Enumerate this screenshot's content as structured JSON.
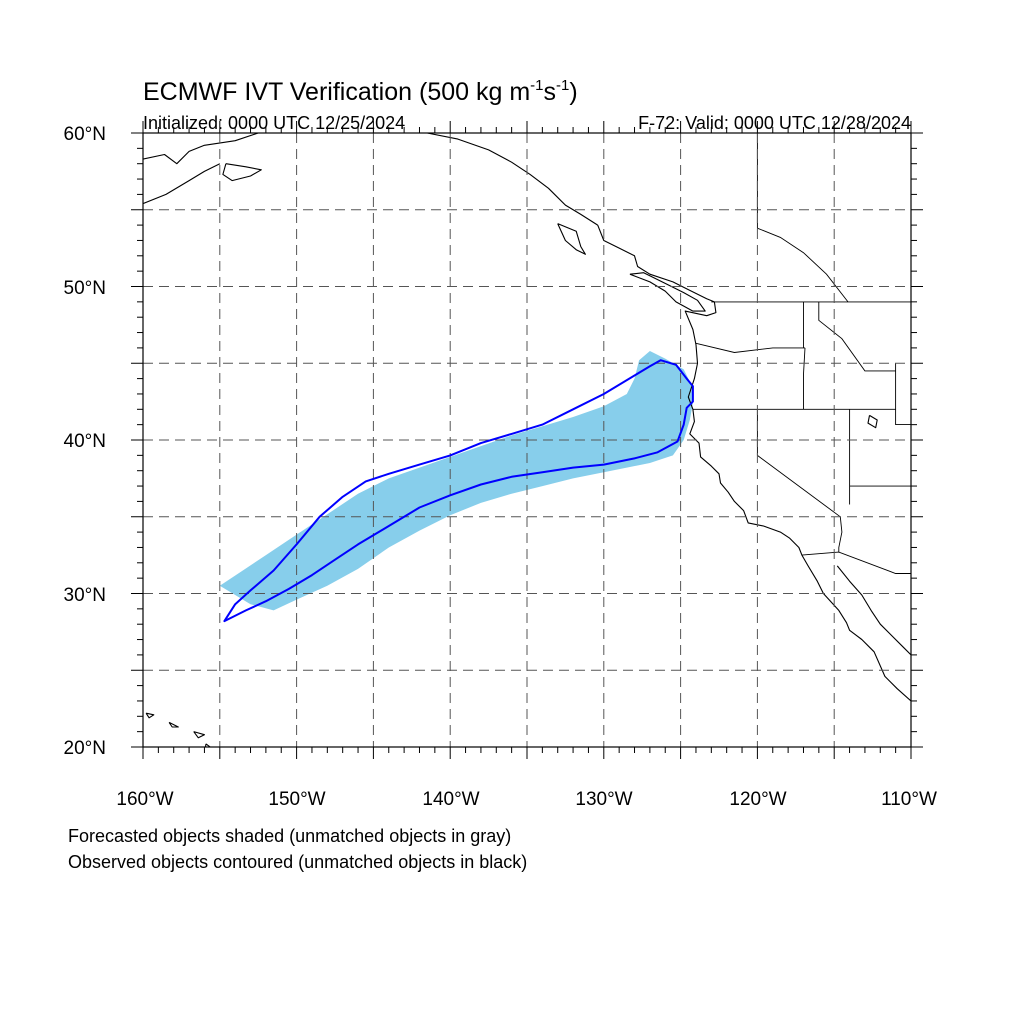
{
  "title": {
    "main": "ECMWF IVT Verification (500 kg m",
    "sup1": "-1",
    "mid": "s",
    "sup2": "-1",
    "end": ")"
  },
  "subtitle_left": "Initialized: 0000 UTC 12/25/2024",
  "subtitle_right": "F-72: Valid: 0000 UTC 12/28/2024",
  "lon_labels": [
    "160°W",
    "150°W",
    "140°W",
    "130°W",
    "120°W",
    "110°W"
  ],
  "lat_labels": [
    "60°N",
    "50°N",
    "40°N",
    "30°N",
    "20°N"
  ],
  "captions": [
    "Forecasted objects shaded (unmatched objects in gray)",
    "Observed objects contoured (unmatched objects in black)"
  ],
  "map_extent": {
    "lon": [
      -160,
      -110
    ],
    "lat": [
      20,
      60
    ]
  },
  "grid": {
    "lon_step": 5,
    "lat_step": 5,
    "style": "dashed"
  },
  "colors": {
    "forecast_fill": "#87ceeb",
    "observed_contour": "#0000ff",
    "coastline": "#000000",
    "grid": "#555555"
  },
  "forecast_object": {
    "label": "forecast IVT object (matched)",
    "polygon": [
      [
        -155.0,
        30.5
      ],
      [
        -153.5,
        31.5
      ],
      [
        -152.0,
        32.5
      ],
      [
        -150.5,
        33.5
      ],
      [
        -149.0,
        34.5
      ],
      [
        -147.5,
        35.5
      ],
      [
        -146.0,
        36.5
      ],
      [
        -144.0,
        37.5
      ],
      [
        -142.0,
        38.2
      ],
      [
        -140.0,
        38.9
      ],
      [
        -138.0,
        39.6
      ],
      [
        -136.0,
        40.3
      ],
      [
        -134.0,
        40.9
      ],
      [
        -132.0,
        41.5
      ],
      [
        -130.0,
        42.2
      ],
      [
        -128.5,
        43.0
      ],
      [
        -128.0,
        44.0
      ],
      [
        -127.7,
        45.2
      ],
      [
        -127.0,
        45.8
      ],
      [
        -126.0,
        45.3
      ],
      [
        -124.8,
        44.6
      ],
      [
        -124.3,
        43.6
      ],
      [
        -124.2,
        42.4
      ],
      [
        -124.4,
        41.3
      ],
      [
        -124.8,
        40.0
      ],
      [
        -125.5,
        39.0
      ],
      [
        -127.0,
        38.5
      ],
      [
        -128.5,
        38.2
      ],
      [
        -130.0,
        37.9
      ],
      [
        -132.0,
        37.5
      ],
      [
        -134.0,
        37.0
      ],
      [
        -136.0,
        36.5
      ],
      [
        -138.0,
        35.9
      ],
      [
        -140.0,
        35.1
      ],
      [
        -142.0,
        34.1
      ],
      [
        -144.0,
        33.0
      ],
      [
        -146.0,
        31.6
      ],
      [
        -148.0,
        30.5
      ],
      [
        -150.0,
        29.6
      ],
      [
        -151.5,
        28.9
      ],
      [
        -153.0,
        29.3
      ],
      [
        -154.0,
        29.9
      ]
    ]
  },
  "observed_object": {
    "label": "observed IVT object (matched)",
    "polygon": [
      [
        -154.7,
        28.2
      ],
      [
        -153.3,
        28.9
      ],
      [
        -152.0,
        29.5
      ],
      [
        -150.5,
        30.3
      ],
      [
        -149.0,
        31.2
      ],
      [
        -147.5,
        32.2
      ],
      [
        -146.0,
        33.2
      ],
      [
        -144.0,
        34.4
      ],
      [
        -142.0,
        35.6
      ],
      [
        -140.0,
        36.4
      ],
      [
        -138.0,
        37.1
      ],
      [
        -136.0,
        37.6
      ],
      [
        -134.0,
        37.9
      ],
      [
        -132.0,
        38.2
      ],
      [
        -130.0,
        38.4
      ],
      [
        -128.0,
        38.8
      ],
      [
        -126.5,
        39.2
      ],
      [
        -125.2,
        39.9
      ],
      [
        -124.8,
        41.0
      ],
      [
        -124.6,
        42.1
      ],
      [
        -124.2,
        42.5
      ],
      [
        -124.2,
        43.5
      ],
      [
        -124.6,
        44.0
      ],
      [
        -125.3,
        44.9
      ],
      [
        -126.3,
        45.2
      ],
      [
        -127.0,
        44.8
      ],
      [
        -128.0,
        44.2
      ],
      [
        -130.0,
        43.0
      ],
      [
        -132.0,
        42.0
      ],
      [
        -134.0,
        41.0
      ],
      [
        -136.0,
        40.4
      ],
      [
        -138.0,
        39.8
      ],
      [
        -140.0,
        39.0
      ],
      [
        -142.0,
        38.4
      ],
      [
        -144.0,
        37.8
      ],
      [
        -145.5,
        37.3
      ],
      [
        -147.0,
        36.3
      ],
      [
        -148.5,
        35.0
      ],
      [
        -150.0,
        33.2
      ],
      [
        -151.5,
        31.5
      ],
      [
        -153.0,
        30.2
      ],
      [
        -154.0,
        29.3
      ]
    ]
  },
  "coastlines": [
    {
      "name": "alaska-coast",
      "points": [
        [
          -160,
          58.3
        ],
        [
          -158.6,
          58.6
        ],
        [
          -157.8,
          58.0
        ],
        [
          -157.0,
          58.8
        ],
        [
          -156.0,
          59.2
        ],
        [
          -154.0,
          59.5
        ],
        [
          -152.5,
          60.0
        ],
        [
          -151.3,
          60.5
        ],
        [
          -150.0,
          60.8
        ],
        [
          -148.0,
          60.7
        ],
        [
          -146.0,
          61.0
        ],
        [
          -144.0,
          60.2
        ],
        [
          -141.5,
          60.0
        ],
        [
          -139.5,
          59.6
        ],
        [
          -137.5,
          58.9
        ],
        [
          -136.0,
          58.1
        ],
        [
          -134.8,
          57.3
        ],
        [
          -133.6,
          56.4
        ],
        [
          -132.5,
          55.3
        ],
        [
          -131.5,
          54.7
        ],
        [
          -130.4,
          54.0
        ]
      ]
    },
    {
      "name": "alaska-peninsula",
      "points": [
        [
          -160,
          55.4
        ],
        [
          -158.5,
          56.0
        ],
        [
          -157.0,
          56.9
        ],
        [
          -156.0,
          57.5
        ],
        [
          -155.0,
          58.0
        ]
      ]
    },
    {
      "name": "kodiak-island",
      "points": [
        [
          -154.6,
          58.0
        ],
        [
          -153.3,
          57.8
        ],
        [
          -152.3,
          57.6
        ],
        [
          -153.0,
          57.2
        ],
        [
          -154.2,
          56.9
        ],
        [
          -154.8,
          57.3
        ],
        [
          -154.6,
          58.0
        ]
      ]
    },
    {
      "name": "haida-gwaii",
      "points": [
        [
          -133.0,
          54.1
        ],
        [
          -131.8,
          53.6
        ],
        [
          -131.5,
          52.6
        ],
        [
          -131.2,
          52.1
        ],
        [
          -131.8,
          52.4
        ],
        [
          -132.5,
          53.0
        ],
        [
          -133.0,
          54.1
        ]
      ]
    },
    {
      "name": "vancouver-island",
      "points": [
        [
          -128.3,
          50.8
        ],
        [
          -127.0,
          50.3
        ],
        [
          -126.0,
          49.7
        ],
        [
          -125.3,
          49.0
        ],
        [
          -124.2,
          48.4
        ],
        [
          -123.4,
          48.4
        ],
        [
          -123.9,
          49.1
        ],
        [
          -124.8,
          49.6
        ],
        [
          -126.0,
          50.2
        ],
        [
          -127.4,
          50.9
        ],
        [
          -128.3,
          50.8
        ]
      ]
    },
    {
      "name": "bc-coast",
      "points": [
        [
          -130.4,
          54.0
        ],
        [
          -130.0,
          53.0
        ],
        [
          -129.0,
          52.5
        ],
        [
          -128.0,
          52.0
        ],
        [
          -127.8,
          51.3
        ],
        [
          -127.0,
          50.8
        ],
        [
          -125.5,
          50.3
        ],
        [
          -124.5,
          49.8
        ],
        [
          -123.3,
          49.2
        ],
        [
          -122.8,
          49.0
        ]
      ]
    },
    {
      "name": "us-west-coast",
      "points": [
        [
          -122.8,
          49.0
        ],
        [
          -122.7,
          48.3
        ],
        [
          -123.3,
          48.1
        ],
        [
          -124.7,
          48.4
        ],
        [
          -124.2,
          47.2
        ],
        [
          -124.0,
          46.2
        ],
        [
          -123.9,
          45.0
        ],
        [
          -124.1,
          44.0
        ],
        [
          -124.5,
          42.8
        ],
        [
          -124.2,
          42.0
        ],
        [
          -124.1,
          41.2
        ],
        [
          -124.4,
          40.4
        ],
        [
          -123.8,
          39.8
        ],
        [
          -123.7,
          38.9
        ],
        [
          -123.0,
          38.3
        ],
        [
          -122.5,
          37.8
        ],
        [
          -122.4,
          37.2
        ],
        [
          -121.9,
          36.6
        ],
        [
          -121.5,
          36.0
        ],
        [
          -120.9,
          35.4
        ],
        [
          -120.6,
          34.6
        ],
        [
          -119.6,
          34.4
        ],
        [
          -118.5,
          34.0
        ],
        [
          -117.9,
          33.6
        ],
        [
          -117.3,
          33.0
        ],
        [
          -117.1,
          32.5
        ],
        [
          -116.7,
          31.8
        ],
        [
          -116.1,
          30.8
        ],
        [
          -115.7,
          30.0
        ],
        [
          -114.7,
          28.9
        ],
        [
          -114.2,
          28.1
        ],
        [
          -114.0,
          27.6
        ],
        [
          -113.2,
          27.0
        ],
        [
          -112.4,
          26.2
        ],
        [
          -111.7,
          24.6
        ],
        [
          -110.9,
          23.8
        ],
        [
          -110.0,
          23.0
        ]
      ]
    },
    {
      "name": "gulf-of-california-east",
      "points": [
        [
          -114.8,
          31.8
        ],
        [
          -114.0,
          30.8
        ],
        [
          -113.2,
          29.9
        ],
        [
          -112.6,
          28.9
        ],
        [
          -112.0,
          28.0
        ],
        [
          -111.2,
          27.2
        ],
        [
          -110.5,
          26.5
        ],
        [
          -110.0,
          26.0
        ]
      ]
    },
    {
      "name": "hawaii-main",
      "points": [
        [
          -155.9,
          20.2
        ],
        [
          -155.1,
          19.6
        ],
        [
          -155.7,
          19.0
        ],
        [
          -156.0,
          19.6
        ],
        [
          -155.9,
          20.2
        ]
      ]
    },
    {
      "name": "maui",
      "points": [
        [
          -156.7,
          21.0
        ],
        [
          -156.0,
          20.8
        ],
        [
          -156.4,
          20.6
        ],
        [
          -156.7,
          21.0
        ]
      ]
    },
    {
      "name": "oahu",
      "points": [
        [
          -158.3,
          21.6
        ],
        [
          -157.7,
          21.3
        ],
        [
          -158.1,
          21.3
        ],
        [
          -158.3,
          21.6
        ]
      ]
    },
    {
      "name": "kauai",
      "points": [
        [
          -159.8,
          22.2
        ],
        [
          -159.3,
          22.1
        ],
        [
          -159.6,
          21.9
        ],
        [
          -159.8,
          22.2
        ]
      ]
    },
    {
      "name": "great-salt-lake",
      "points": [
        [
          -112.7,
          41.6
        ],
        [
          -112.2,
          41.3
        ],
        [
          -112.3,
          40.8
        ],
        [
          -112.8,
          41.1
        ],
        [
          -112.7,
          41.6
        ]
      ]
    }
  ],
  "boundaries": [
    {
      "name": "us-canada-border",
      "points": [
        [
          -123.0,
          49.0
        ],
        [
          -110,
          49.0
        ]
      ]
    },
    {
      "name": "alaska-canada-border",
      "points": [
        [
          -141,
          60
        ],
        [
          -141,
          60.3
        ]
      ]
    },
    {
      "name": "bc-alberta-border",
      "points": [
        [
          -120,
          60
        ],
        [
          -120,
          53.8
        ],
        [
          -118.5,
          53.2
        ],
        [
          -117,
          52.2
        ],
        [
          -115.5,
          50.8
        ],
        [
          -114.1,
          49.0
        ]
      ]
    },
    {
      "name": "wa-or-border",
      "points": [
        [
          -124.0,
          46.3
        ],
        [
          -121.5,
          45.7
        ],
        [
          -119,
          46.0
        ],
        [
          -116.9,
          46.0
        ]
      ]
    },
    {
      "name": "wa-id-border",
      "points": [
        [
          -117.0,
          49.0
        ],
        [
          -117.0,
          46.0
        ]
      ]
    },
    {
      "name": "id-mt-border",
      "points": [
        [
          -116.0,
          49.0
        ],
        [
          -116.0,
          47.8
        ],
        [
          -114.5,
          46.6
        ],
        [
          -113.0,
          44.5
        ],
        [
          -111.0,
          44.5
        ]
      ]
    },
    {
      "name": "or-id-border",
      "points": [
        [
          -116.9,
          46.0
        ],
        [
          -117.0,
          44.3
        ],
        [
          -117.0,
          42.0
        ]
      ]
    },
    {
      "name": "or-ca-nv-border",
      "points": [
        [
          -124.2,
          42.0
        ],
        [
          -111.0,
          42.0
        ]
      ]
    },
    {
      "name": "id-wy-border",
      "points": [
        [
          -111.0,
          45.0
        ],
        [
          -111.0,
          41.0
        ],
        [
          -110,
          41.0
        ]
      ]
    },
    {
      "name": "nv-ut-border",
      "points": [
        [
          -114.0,
          42.0
        ],
        [
          -114.0,
          35.8
        ]
      ]
    },
    {
      "name": "ca-nv-border",
      "points": [
        [
          -120.0,
          42.0
        ],
        [
          -120.0,
          39.0
        ],
        [
          -114.6,
          35.0
        ]
      ]
    },
    {
      "name": "ut-az-border",
      "points": [
        [
          -114.0,
          37.0
        ],
        [
          -110,
          37.0
        ]
      ]
    },
    {
      "name": "az-ca-border",
      "points": [
        [
          -114.6,
          35.0
        ],
        [
          -114.5,
          34.0
        ],
        [
          -114.7,
          33.0
        ],
        [
          -114.7,
          32.7
        ]
      ]
    },
    {
      "name": "us-mexico-border",
      "points": [
        [
          -117.1,
          32.5
        ],
        [
          -114.7,
          32.7
        ],
        [
          -111.0,
          31.3
        ],
        [
          -110,
          31.3
        ]
      ]
    }
  ]
}
